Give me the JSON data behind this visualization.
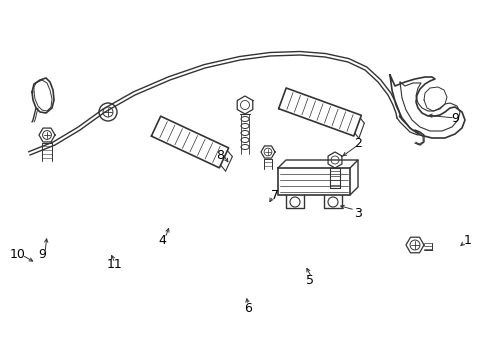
{
  "background_color": "#ffffff",
  "line_color": "#333333",
  "label_color": "#000000",
  "line_width": 1.2,
  "fig_width": 4.89,
  "fig_height": 3.6
}
